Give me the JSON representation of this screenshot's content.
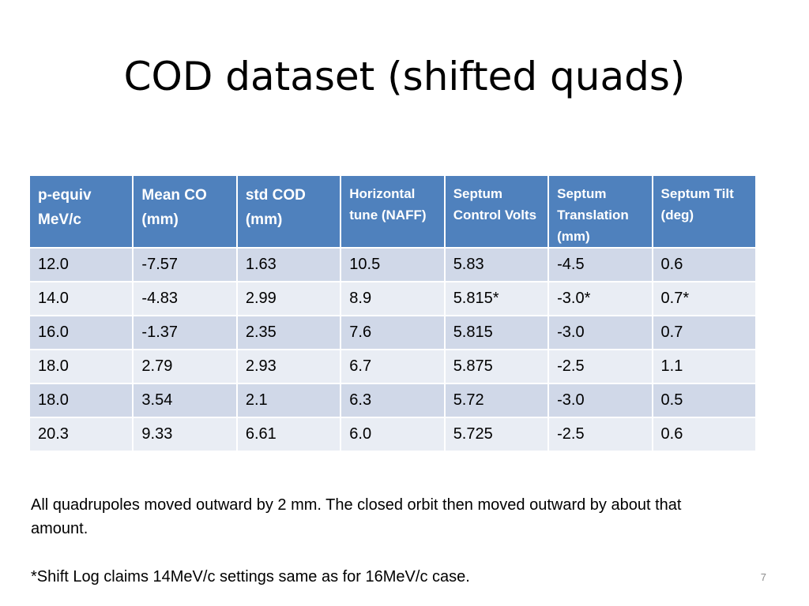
{
  "title": "COD dataset (shifted quads)",
  "table": {
    "headers": [
      "p-equiv MeV/c",
      "Mean CO (mm)",
      "std COD (mm)",
      "Horizontal tune (NAFF)",
      "Septum Control Volts",
      "Septum Translation (mm)",
      "Septum Tilt (deg)"
    ],
    "rows": [
      [
        "12.0",
        "-7.57",
        "1.63",
        "10.5",
        "5.83",
        "-4.5",
        "0.6"
      ],
      [
        "14.0",
        "-4.83",
        "2.99",
        "8.9",
        "5.815*",
        "-3.0*",
        "0.7*"
      ],
      [
        "16.0",
        "-1.37",
        "2.35",
        "7.6",
        "5.815",
        "-3.0",
        "0.7"
      ],
      [
        "18.0",
        "2.79",
        "2.93",
        "6.7",
        "5.875",
        "-2.5",
        "1.1"
      ],
      [
        "18.0",
        "3.54",
        "2.1",
        "6.3",
        "5.72",
        "-3.0",
        "0.5"
      ],
      [
        "20.3",
        "9.33",
        "6.61",
        "6.0",
        "5.725",
        "-2.5",
        "0.6"
      ]
    ]
  },
  "notes": {
    "line1": "All quadrupoles moved outward by 2 mm. The closed orbit then moved outward by about that amount.",
    "line2": "*Shift Log claims 14MeV/c settings same as for 16MeV/c case."
  },
  "page_number": "7",
  "colors": {
    "header_bg": "#4f81bd",
    "row_odd_bg": "#d0d8e8",
    "row_even_bg": "#e9edf4"
  }
}
